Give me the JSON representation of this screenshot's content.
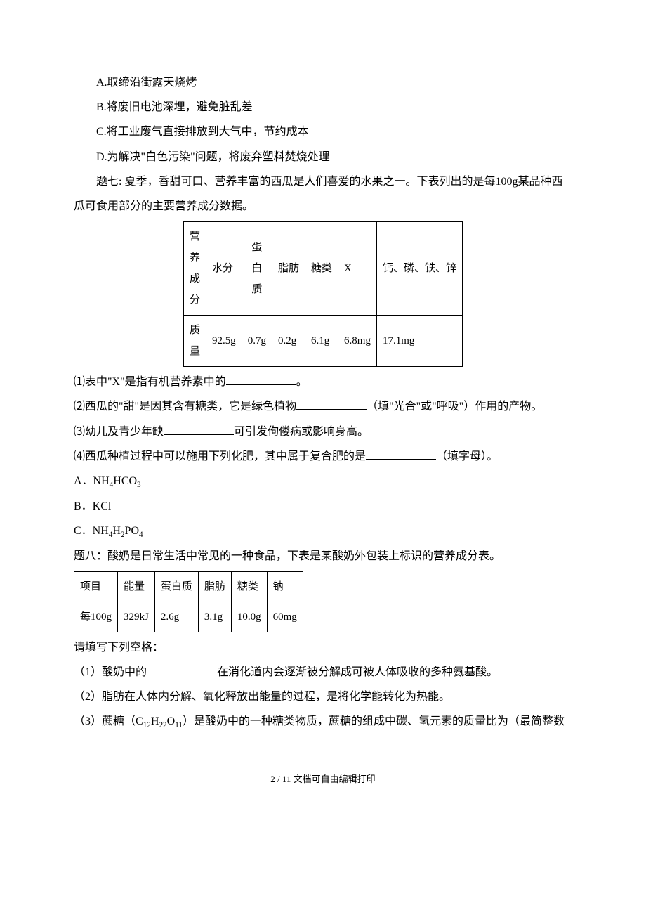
{
  "options": {
    "a": "A.取缔沿街露天烧烤",
    "b": "B.将废旧电池深埋，避免脏乱差",
    "c": "C.将工业废气直接排放到大气中，节约成本",
    "d": "D.为解决\"白色污染\"问题，将废弃塑料焚烧处理"
  },
  "q7": {
    "intro": "题七: 夏季，香甜可口、营养丰富的西瓜是人们喜爱的水果之一。下表列出的是每100g某品种西瓜可食用部分的主要营养成分数据。",
    "table": {
      "row1_label_chars": [
        "营",
        "养",
        "成",
        "分"
      ],
      "row1": [
        "水分",
        "",
        "脂肪",
        "糖类",
        "X",
        "钙、磷、铁、锌"
      ],
      "protein_chars": [
        "蛋",
        "白",
        "质"
      ],
      "row2_label_chars": [
        "质",
        "量"
      ],
      "row2": [
        "92.5g",
        "0.7g",
        "0.2g",
        "6.1g",
        "6.8mg",
        "17.1mg"
      ]
    },
    "p1_a": "⑴表中\"X\"是指有机营养素中的",
    "p1_b": "。",
    "p2_a": "⑵西瓜的\"甜\"是因其含有糖类，它是绿色植物",
    "p2_b": "（填\"光合\"或\"呼吸\"）作用的产物。",
    "p3_a": "⑶幼儿及青少年缺",
    "p3_b": "可引发佝偻病或影响身高。",
    "p4_a": "⑷西瓜种植过程中可以施用下列化肥，其中属于复合肥的是",
    "p4_b": "（填字母）。",
    "opts": {
      "a_pre": "A．NH",
      "a_sub1": "4",
      "a_mid": "HCO",
      "a_sub2": "3",
      "b": "B．KCl",
      "c_pre": "C．NH",
      "c_sub1": "4",
      "c_mid1": "H",
      "c_sub2": "2",
      "c_mid2": "PO",
      "c_sub3": "4"
    }
  },
  "q8": {
    "intro": "题八：酸奶是日常生活中常见的一种食品，下表是某酸奶外包装上标识的营养成分表。",
    "table": {
      "headers": [
        "项目",
        "能量",
        "蛋白质",
        "脂肪",
        "糖类",
        "钠"
      ],
      "row": [
        "每100g",
        "329kJ",
        "2.6g",
        "3.1g",
        "10.0g",
        "60mg"
      ]
    },
    "prompt": "请填写下列空格：",
    "p1_a": "（1）酸奶中的",
    "p1_b": "在消化道内会逐渐被分解成可被人体吸收的多种氨基酸。",
    "p2": "（2）脂肪在人体内分解、氧化释放出能量的过程，是将化学能转化为热能。",
    "p3_a": "（3）蔗糖（C",
    "p3_s1": "12",
    "p3_b": "H",
    "p3_s2": "22",
    "p3_c": "O",
    "p3_s3": "11",
    "p3_d": "）是酸奶中的一种糖类物质，蔗糖的组成中碳、氢元素的质量比为（最简整数"
  },
  "footer": "2 / 11 文档可自由编辑打印"
}
